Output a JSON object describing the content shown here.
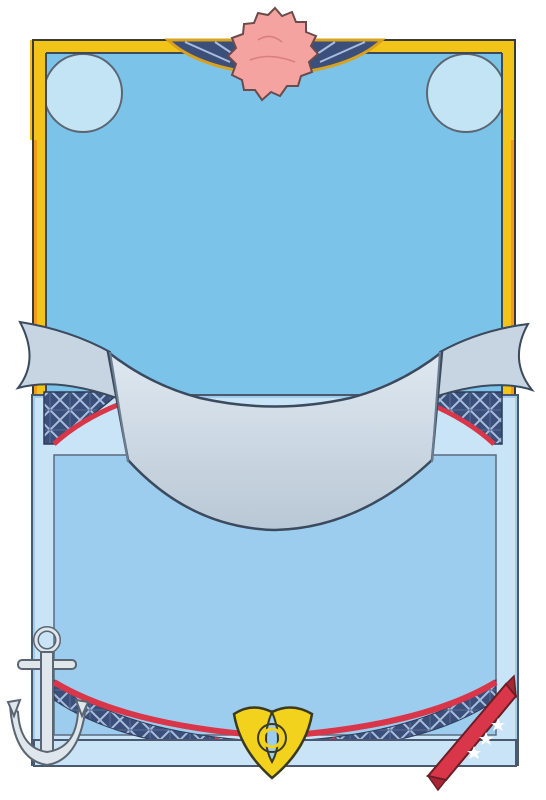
{
  "card": {
    "template": "blank-card-frame",
    "title_text": "",
    "body_text": "",
    "rarity_stars": 3
  },
  "icons": {
    "top_emblem": "pink-flower-icon",
    "bottom_emblem": "triquetra-knot-icon",
    "corner_bottom_left": "anchor-icon",
    "corner_bottom_right": "ribbon-bookmark-icon",
    "rarity_mark": "star-icon"
  },
  "colors": {
    "frame_gold": "#f2c318",
    "frame_orange": "#f39a1a",
    "art_blue": "#7cc3ea",
    "corner_circle": "#c2e4f4",
    "banner_fill": "#cfdce8",
    "text_panel": "#9ccdee",
    "plaid_navy": "#3a4f7a",
    "accent_red": "#d9364a",
    "knot_yellow": "#f3d21e",
    "flower_pink": "#f4a3a0",
    "anchor_silver": "#dfe6ec"
  }
}
